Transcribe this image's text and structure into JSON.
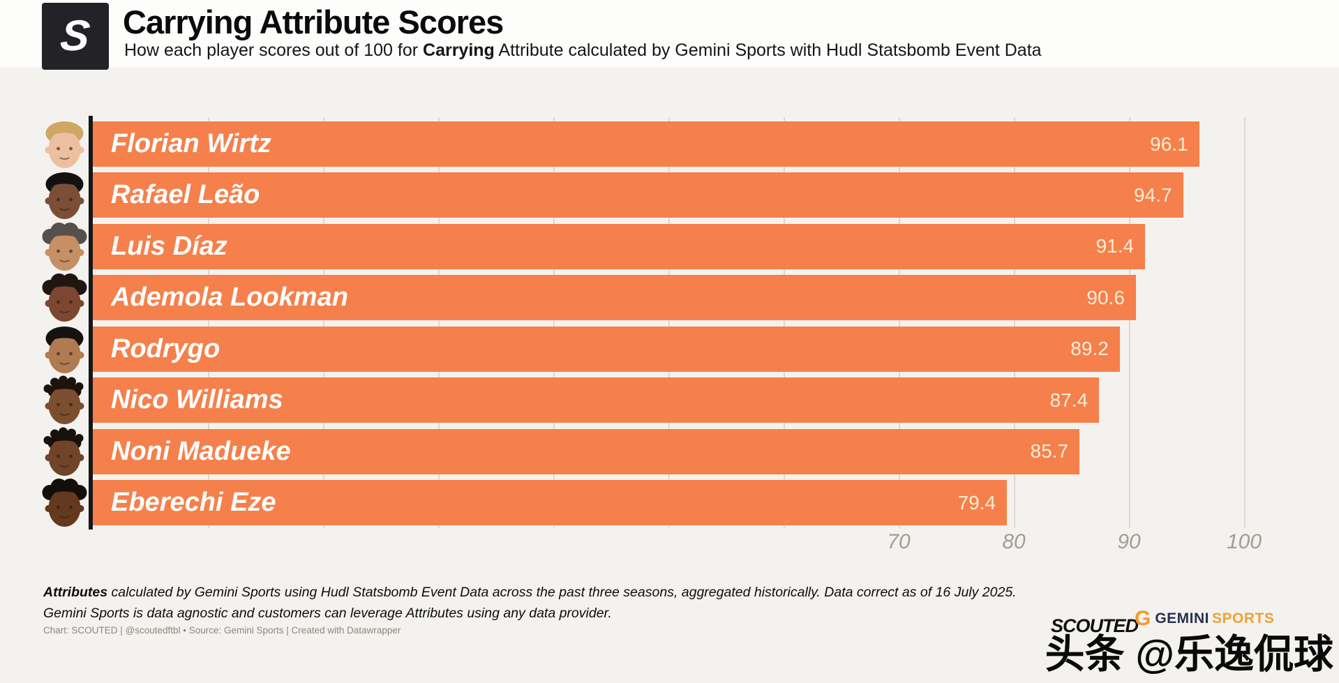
{
  "header": {
    "logo_letter": "S",
    "title": "Carrying Attribute Scores",
    "subtitle_prefix": "How each player scores out of 100 for ",
    "subtitle_bold": "Carrying",
    "subtitle_suffix": " Attribute calculated by Gemini Sports with Hudl Statsbomb Event Data"
  },
  "chart_data": {
    "type": "bar",
    "orientation": "horizontal",
    "title": "Carrying Attribute Scores",
    "categories": [
      "Florian Wirtz",
      "Rafael Leão",
      "Luis Díaz",
      "Ademola Lookman",
      "Rodrygo",
      "Nico Williams",
      "Noni Madueke",
      "Eberechi Eze"
    ],
    "values": [
      96.1,
      94.7,
      91.4,
      90.6,
      89.2,
      87.4,
      85.7,
      79.4
    ],
    "xlim": [
      0,
      108
    ],
    "tick_labels": [
      70,
      80,
      90,
      100
    ],
    "gridlines": [
      10,
      20,
      30,
      40,
      50,
      60,
      70,
      80,
      90,
      100
    ],
    "grid_on": true,
    "legend": "none",
    "bar_color": "#f5804b",
    "value_label_color": "#f9edd6",
    "grid_color": "#dcd9d4",
    "axis_line_color": "#171717",
    "tick_label_color": "#a19c96"
  },
  "avatars": [
    {
      "player": "Florian Wirtz",
      "skin": "#ecbfa0",
      "hair": "#cfa763",
      "hair_style": "short"
    },
    {
      "player": "Rafael Leão",
      "skin": "#7a4f35",
      "hair": "#141210",
      "hair_style": "short"
    },
    {
      "player": "Luis Díaz",
      "skin": "#c78f65",
      "hair": "#55504b",
      "hair_style": "curly"
    },
    {
      "player": "Ademola Lookman",
      "skin": "#7c4631",
      "hair": "#201511",
      "hair_style": "curly"
    },
    {
      "player": "Rodrygo",
      "skin": "#b07a52",
      "hair": "#16120f",
      "hair_style": "short"
    },
    {
      "player": "Nico Williams",
      "skin": "#7c4e30",
      "hair": "#1c130d",
      "hair_style": "twists"
    },
    {
      "player": "Noni Madueke",
      "skin": "#6f4429",
      "hair": "#17100b",
      "hair_style": "twists"
    },
    {
      "player": "Eberechi Eze",
      "skin": "#63391f",
      "hair": "#140e0a",
      "hair_style": "curly"
    }
  ],
  "footer": {
    "note_bold": "Attributes",
    "note_line1_rest": " calculated by Gemini Sports using Hudl Statsbomb Event Data across the past three seasons, aggregated historically. Data correct as of 16 July 2025.",
    "note_line2": "Gemini Sports is data agnostic and customers can leverage Attributes using any data provider.",
    "credit": "Chart: SCOUTED | @scoutedftbl • Source: Gemini Sports | Created with Datawrapper"
  },
  "branding": {
    "scouted_wordmark": "SCOUTED",
    "gemini_g": "G",
    "gemini_word1": "GEMINI",
    "gemini_word2": "SPORTS",
    "watermark": "头条 @乐逸侃球"
  }
}
